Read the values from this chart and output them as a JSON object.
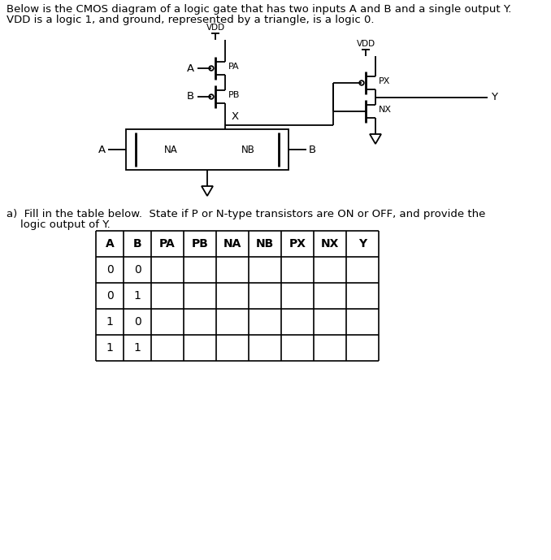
{
  "title_line1": "Below is the CMOS diagram of a logic gate that has two inputs A and B and a single output Y.",
  "title_line2": "VDD is a logic 1, and ground, represented by a triangle, is a logic 0.",
  "part_a_line1": "a)  Fill in the table below.  State if P or N-type transistors are ON or OFF, and provide the",
  "part_a_line2": "    logic output of Y.",
  "table_headers": [
    "A",
    "B",
    "PA",
    "PB",
    "NA",
    "NB",
    "PX",
    "NX",
    "Y"
  ],
  "table_rows": [
    [
      "0",
      "0",
      "",
      "",
      "",
      "",
      "",
      "",
      ""
    ],
    [
      "0",
      "1",
      "",
      "",
      "",
      "",
      "",
      "",
      ""
    ],
    [
      "1",
      "0",
      "",
      "",
      "",
      "",
      "",
      "",
      ""
    ],
    [
      "1",
      "1",
      "",
      "",
      "",
      "",
      "",
      "",
      ""
    ]
  ],
  "bg_color": "#ffffff",
  "text_color": "#000000",
  "line_color": "#000000",
  "vdd_label": "VDD",
  "x_label": "X",
  "y_label": "Y",
  "font_size": 9.5
}
